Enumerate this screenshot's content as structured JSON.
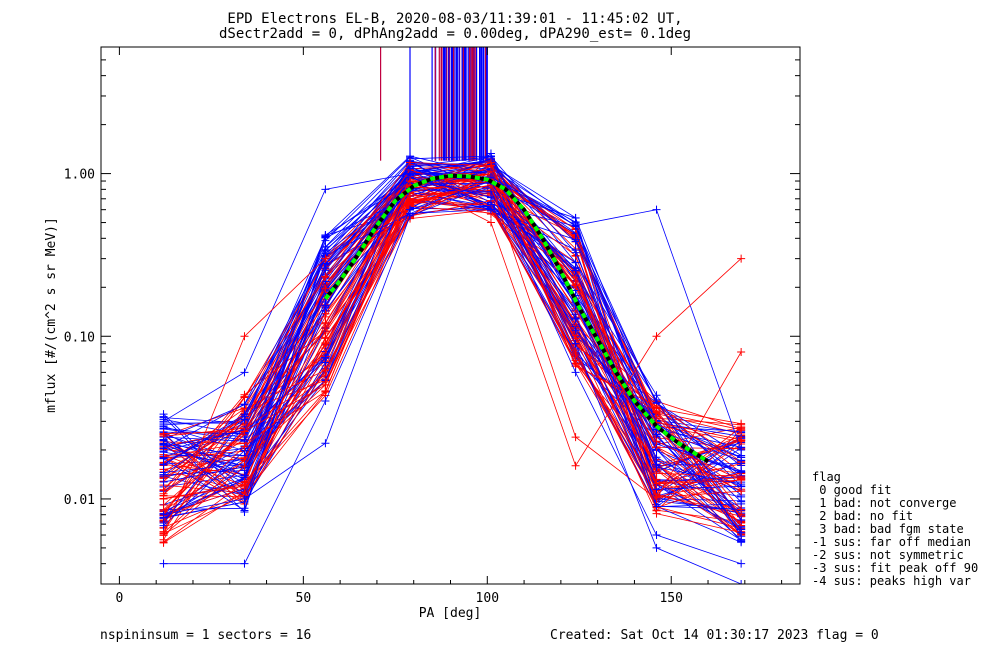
{
  "chart_data": {
    "type": "line",
    "title": "EPD Electrons EL-B, 2020-08-03/11:39:01 - 11:45:02 UT,",
    "subtitle": "dSectr2add = 0, dPhAng2add = 0.00deg, dPA290_est=   0.1deg",
    "xlabel": "PA [deg]",
    "ylabel": "mflux [#/(cm^2 s sr MeV)]",
    "xlim": [
      -5,
      185
    ],
    "ylim": [
      0.003,
      6.0
    ],
    "yscale": "log",
    "xticks": [
      0,
      50,
      100,
      150
    ],
    "xtick_labels": [
      "0",
      "50",
      "100",
      "150"
    ],
    "yticks": [
      0.01,
      0.1,
      1.0
    ],
    "ytick_labels": [
      "0.01",
      "0.10",
      "1.00"
    ],
    "pa_bins": [
      12,
      34,
      56,
      79,
      101,
      124,
      146,
      169
    ],
    "series": [
      {
        "color": "#0000ff",
        "profile": [
          0.015,
          0.018,
          0.15,
          0.85,
          0.88,
          0.2,
          0.02,
          0.012
        ]
      },
      {
        "color": "#ff0000",
        "profile": [
          0.012,
          0.02,
          0.12,
          0.8,
          0.82,
          0.18,
          0.018,
          0.013
        ]
      }
    ],
    "outlier_lines": [
      {
        "color": "#0000ff",
        "values": [
          0.03,
          0.06,
          0.8,
          1.0,
          0.95,
          0.48,
          0.6,
          0.02
        ]
      },
      {
        "color": "#0000ff",
        "values": [
          0.008,
          0.01,
          0.022,
          0.55,
          0.85,
          0.06,
          0.006,
          0.004
        ]
      },
      {
        "color": "#ff0000",
        "values": [
          0.006,
          0.1,
          0.3,
          0.9,
          0.5,
          0.016,
          0.1,
          0.3
        ]
      },
      {
        "color": "#ff0000",
        "values": [
          0.01,
          0.012,
          0.09,
          0.7,
          0.85,
          0.024,
          0.01,
          0.08
        ]
      },
      {
        "color": "#0000ff",
        "values": [
          0.004,
          0.004,
          0.04,
          0.6,
          0.9,
          0.09,
          0.005,
          0.003
        ]
      }
    ],
    "fit_curve": {
      "colors": [
        "#000000",
        "#00ff00"
      ],
      "points": [
        [
          56,
          0.17
        ],
        [
          60,
          0.22
        ],
        [
          65,
          0.32
        ],
        [
          70,
          0.48
        ],
        [
          75,
          0.68
        ],
        [
          80,
          0.84
        ],
        [
          85,
          0.93
        ],
        [
          90,
          0.97
        ],
        [
          95,
          0.96
        ],
        [
          100,
          0.92
        ],
        [
          105,
          0.8
        ],
        [
          110,
          0.6
        ],
        [
          115,
          0.4
        ],
        [
          120,
          0.25
        ],
        [
          125,
          0.15
        ],
        [
          130,
          0.095
        ],
        [
          135,
          0.06
        ],
        [
          140,
          0.04
        ],
        [
          146,
          0.028
        ],
        [
          152,
          0.022
        ],
        [
          160,
          0.017
        ]
      ]
    },
    "spikes": {
      "x_range": [
        71,
        101
      ],
      "from_y": 1.2
    },
    "legend": {
      "title": "flag",
      "items": [
        " 0 good fit",
        " 1 bad: not converge",
        " 2 bad: no fit",
        " 3 bad: bad fgm state",
        "-1 sus: far off median",
        "-2 sus: not symmetric",
        "-3 sus: fit peak off 90",
        "-4 sus: peaks high var"
      ]
    },
    "footer": {
      "left": "nspininsum =  1  sectors = 16",
      "right": "Created: Sat Oct 14 01:30:17 2023   flag = 0"
    }
  }
}
